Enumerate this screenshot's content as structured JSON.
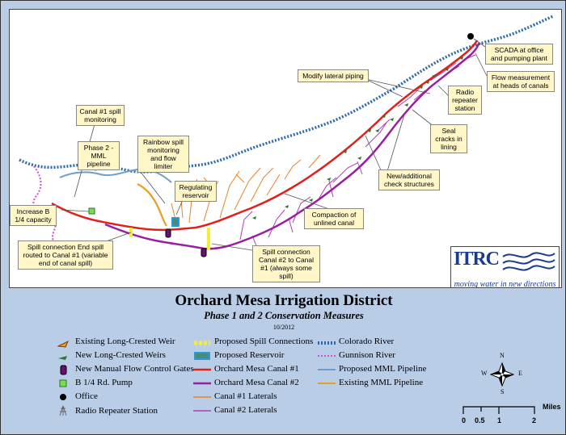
{
  "title": "Orchard Mesa Irrigation District",
  "subtitle": "Phase 1 and 2 Conservation Measures",
  "date": "10/2012",
  "logo": {
    "name": "ITRC",
    "tagline": "moving water in new directions"
  },
  "callouts": {
    "scada": "SCADA at office and pumping plant",
    "flow_measurement": "Flow measurement at heads of canals",
    "modify_lateral": "Modify lateral piping",
    "radio_repeater": "Radio repeater station",
    "seal_cracks": "Seal cracks in lining",
    "canal1_spill_monitoring": "Canal #1 spill monitoring",
    "phase2_mml": "Phase 2 - MML pipeline",
    "rainbow_spill": "Rainbow spill monitoring and flow limiter",
    "regulating_reservoir": "Regulating reservoir",
    "new_check_structures": "New/additional check structures",
    "compaction": "Compaction of unlined canal",
    "increase_b14": "Increase B 1/4 capacity",
    "spill_end": "Spill connection End spill routed to Canal #1 (variable end of canal spill)",
    "spill_canal2": "Spill connection Canal #2 to Canal #1 (always some spill)"
  },
  "legend": {
    "col1": [
      {
        "icon": "long-crested-weir-existing-icon",
        "label": "Existing Long-Crested Weir"
      },
      {
        "icon": "long-crested-weir-new-icon",
        "label": "New Long-Crested Weirs"
      },
      {
        "icon": "flow-control-gate-icon",
        "label": "New Manual Flow Control Gates"
      },
      {
        "icon": "pump-icon",
        "label": "B 1/4 Rd. Pump"
      },
      {
        "icon": "office-icon",
        "label": "Office"
      },
      {
        "icon": "radio-repeater-icon",
        "label": "Radio Repeater Station"
      }
    ],
    "col2": [
      {
        "icon": "spill-connection-icon",
        "label": "Proposed Spill Connections"
      },
      {
        "icon": "reservoir-icon",
        "label": "Proposed Reservoir"
      },
      {
        "icon": "canal1-line-icon",
        "label": "Orchard Mesa Canal #1"
      },
      {
        "icon": "canal2-line-icon",
        "label": "Orchard Mesa Canal #2"
      },
      {
        "icon": "canal1-laterals-icon",
        "label": "Canal #1 Laterals"
      },
      {
        "icon": "canal2-laterals-icon",
        "label": "Canal #2 Laterals"
      }
    ],
    "col3": [
      {
        "icon": "colorado-river-icon",
        "label": "Colorado River"
      },
      {
        "icon": "gunnison-river-icon",
        "label": "Gunnison River"
      },
      {
        "icon": "proposed-mml-icon",
        "label": "Proposed MML Pipeline"
      },
      {
        "icon": "existing-mml-icon",
        "label": "Existing MML Pipeline"
      }
    ]
  },
  "compass": {
    "n": "N",
    "s": "S",
    "e": "E",
    "w": "W"
  },
  "scale": {
    "unit": "Miles",
    "ticks": [
      "0",
      "0.5",
      "1",
      "2"
    ]
  },
  "colors": {
    "canal1": "#e0201c",
    "canal2": "#9a1fa0",
    "canal1_laterals": "#e8822a",
    "canal2_laterals": "#b53bbd",
    "colorado_river": "#2c6aa8",
    "gunnison": "#d24fd8",
    "proposed_mml": "#6b9fc9",
    "existing_mml": "#e3a021",
    "spill": "#f2ee3a",
    "background": "#b9cde6"
  }
}
